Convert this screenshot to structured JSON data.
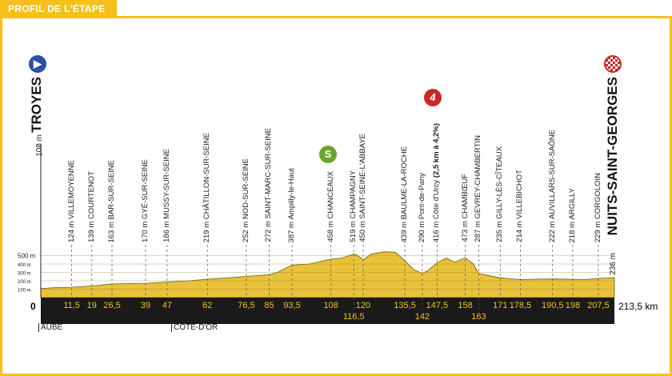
{
  "title": "PROFIL DE L'ÉTAPE",
  "start": {
    "name": "TROYES",
    "altitude": "108 m",
    "icon": "start-play-icon",
    "color": "#2b4fa3"
  },
  "finish": {
    "name": "NUITS-SAINT-GEORGES",
    "altitude": "236 m",
    "icon": "checkered-finish-icon",
    "color": "#c8282a"
  },
  "departments": [
    {
      "name": "AUBE",
      "km": 0
    },
    {
      "name": "CÔTE-D'OR",
      "km": 50
    }
  ],
  "sprint": {
    "label": "S",
    "km": 108,
    "color": "#6aa52c"
  },
  "climb": {
    "label": "4",
    "km": 147.5,
    "color": "#c8282a"
  },
  "chart_data": {
    "type": "area",
    "xlabel": "km",
    "xlim": [
      0,
      213.5
    ],
    "y_ticks": [
      "100 m",
      "200 m",
      "300 m",
      "400 m",
      "500 m"
    ],
    "origin_label": "0",
    "end_label": "213,5 km",
    "waypoints": [
      {
        "km": 11.5,
        "km_label": "11,5",
        "alt": "124 m",
        "name": "VILLEMOYENNE"
      },
      {
        "km": 19,
        "km_label": "19",
        "alt": "139 m",
        "name": "COURTENOT"
      },
      {
        "km": 26.5,
        "km_label": "26,5",
        "alt": "163 m",
        "name": "BAR-SUR-SEINE"
      },
      {
        "km": 39,
        "km_label": "39",
        "alt": "170 m",
        "name": "GYÉ-SUR-SEINE"
      },
      {
        "km": 47,
        "km_label": "47",
        "alt": "186 m",
        "name": "MUSSY-SUR-SEINE"
      },
      {
        "km": 62,
        "km_label": "62",
        "alt": "219 m",
        "name": "CHÂTILLON-SUR-SEINE"
      },
      {
        "km": 76.5,
        "km_label": "76,5",
        "alt": "252 m",
        "name": "NOD-SUR-SEINE"
      },
      {
        "km": 85,
        "km_label": "85",
        "alt": "272 m",
        "name": "SAINT-MARC-SUR-SEINE"
      },
      {
        "km": 93.5,
        "km_label": "93,5",
        "alt": "387 m",
        "name": "Ampilly-le-Haut"
      },
      {
        "km": 108,
        "km_label": "108",
        "alt": "458 m",
        "name": "CHANCEAUX"
      },
      {
        "km": 116.5,
        "km_label": "116,5",
        "alt": "519 m",
        "name": "CHAMPAGNY",
        "row": 2
      },
      {
        "km": 120,
        "km_label": "120",
        "alt": "450 m",
        "name": "SAINT-SEINE-L'ABBAYE"
      },
      {
        "km": 135.5,
        "km_label": "135,5",
        "alt": "439 m",
        "name": "BAULME-LA-ROCHE"
      },
      {
        "km": 142,
        "km_label": "142",
        "alt": "290 m",
        "name": "Pont-de-Pany",
        "row": 2
      },
      {
        "km": 147.5,
        "km_label": "147,5",
        "alt": "416 m",
        "name": "Côte d'Urcy",
        "extra": "(2,5 km à 4,2%)"
      },
      {
        "km": 158,
        "km_label": "158",
        "alt": "473 m",
        "name": "CHAMBŒUF"
      },
      {
        "km": 163,
        "km_label": "163",
        "alt": "287 m",
        "name": "GEVREY-CHAMBERTIN",
        "row": 2
      },
      {
        "km": 171,
        "km_label": "171",
        "alt": "235 m",
        "name": "GILLY-LÈS-CÎTEAUX"
      },
      {
        "km": 178.5,
        "km_label": "178,5",
        "alt": "214 m",
        "name": "VILLEBICHOT"
      },
      {
        "km": 190.5,
        "km_label": "190,5",
        "alt": "222 m",
        "name": "AUVILLARS-SUR-SAÔNE"
      },
      {
        "km": 198,
        "km_label": "198",
        "alt": "218 m",
        "name": "ARGILLY"
      },
      {
        "km": 207.5,
        "km_label": "207,5",
        "alt": "229 m",
        "name": "CORGOLOIN"
      }
    ],
    "profile": [
      [
        0,
        108
      ],
      [
        5,
        118
      ],
      [
        11.5,
        124
      ],
      [
        19,
        139
      ],
      [
        26.5,
        163
      ],
      [
        39,
        170
      ],
      [
        47,
        186
      ],
      [
        55,
        200
      ],
      [
        62,
        219
      ],
      [
        70,
        235
      ],
      [
        76.5,
        252
      ],
      [
        85,
        272
      ],
      [
        88,
        300
      ],
      [
        93.5,
        387
      ],
      [
        100,
        400
      ],
      [
        108,
        458
      ],
      [
        112,
        470
      ],
      [
        116.5,
        519
      ],
      [
        118,
        500
      ],
      [
        120,
        450
      ],
      [
        123,
        520
      ],
      [
        128,
        545
      ],
      [
        132,
        540
      ],
      [
        135.5,
        439
      ],
      [
        139,
        330
      ],
      [
        142,
        290
      ],
      [
        144,
        320
      ],
      [
        147.5,
        416
      ],
      [
        151,
        470
      ],
      [
        154,
        420
      ],
      [
        158,
        473
      ],
      [
        161,
        400
      ],
      [
        163,
        287
      ],
      [
        167,
        260
      ],
      [
        171,
        235
      ],
      [
        178.5,
        214
      ],
      [
        185,
        220
      ],
      [
        190.5,
        222
      ],
      [
        198,
        218
      ],
      [
        203,
        215
      ],
      [
        207.5,
        229
      ],
      [
        213.5,
        236
      ]
    ]
  }
}
